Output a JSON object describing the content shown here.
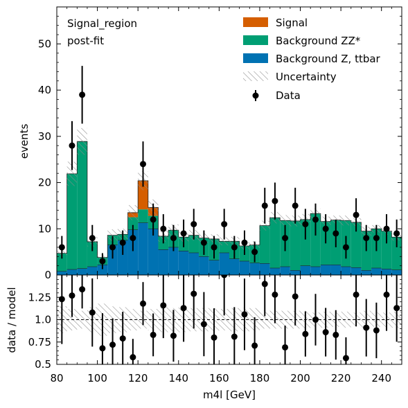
{
  "chart_data": {
    "type": "histogram",
    "annotations": [
      "Signal_region",
      "post-fit"
    ],
    "xlabel": "m4l [GeV]",
    "xlim": [
      80,
      250
    ],
    "x_ticks": [
      "80",
      "100",
      "120",
      "140",
      "160",
      "180",
      "200",
      "220",
      "240"
    ],
    "top_panel": {
      "ylabel": "events",
      "ylim": [
        0,
        58
      ],
      "y_ticks": [
        "0",
        "10",
        "20",
        "30",
        "40",
        "50"
      ]
    },
    "bottom_panel": {
      "ylabel": "data / model",
      "ylim": [
        0.5,
        1.5
      ],
      "y_ticks": [
        "0.5",
        "0.75",
        "1.0",
        "1.25"
      ],
      "reference_line": 1.0
    },
    "bin_edges": [
      80,
      85,
      90,
      95,
      100,
      105,
      110,
      115,
      120,
      125,
      130,
      135,
      140,
      145,
      150,
      155,
      160,
      165,
      170,
      175,
      180,
      185,
      190,
      195,
      200,
      205,
      210,
      215,
      220,
      225,
      230,
      235,
      240,
      245,
      250
    ],
    "series": [
      {
        "name": "Background Z, ttbar",
        "color": "#0072b2",
        "values": [
          0.8,
          1.2,
          1.4,
          1.8,
          2.2,
          6.5,
          7.5,
          9.8,
          11.3,
          10.0,
          5.5,
          6.0,
          5.2,
          4.8,
          4.0,
          3.2,
          4.8,
          3.5,
          3.0,
          2.6,
          2.5,
          1.5,
          1.8,
          1.0,
          2.0,
          1.8,
          2.2,
          2.2,
          1.8,
          1.6,
          1.0,
          1.5,
          1.3,
          1.1
        ]
      },
      {
        "name": "Background ZZ*",
        "color": "#009e73",
        "values": [
          3.9,
          20.7,
          27.5,
          5.4,
          1.6,
          2.1,
          1.3,
          2.7,
          2.9,
          2.8,
          2.9,
          3.7,
          3.0,
          3.8,
          4.0,
          4.6,
          2.5,
          3.8,
          3.3,
          3.9,
          8.2,
          10.9,
          10.0,
          10.7,
          10.0,
          11.5,
          9.4,
          9.7,
          10.0,
          9.8,
          8.5,
          8.5,
          8.2,
          7.1
        ]
      },
      {
        "name": "Signal",
        "color": "#d55e00",
        "values": [
          0,
          0,
          0,
          0,
          0,
          0,
          0,
          1.0,
          6.2,
          1.8,
          0,
          0,
          0,
          0,
          0,
          0,
          0,
          0,
          0,
          0,
          0,
          0,
          0,
          0,
          0,
          0,
          0,
          0,
          0,
          0,
          0,
          0,
          0,
          0
        ]
      }
    ],
    "uncertainty": {
      "name": "Uncertainty",
      "relative": [
        0.15,
        0.12,
        0.1,
        0.14,
        0.18,
        0.15,
        0.14,
        0.12,
        0.1,
        0.12,
        0.14,
        0.13,
        0.14,
        0.13,
        0.13,
        0.13,
        0.12,
        0.13,
        0.13,
        0.13,
        0.1,
        0.1,
        0.1,
        0.1,
        0.1,
        0.08,
        0.09,
        0.08,
        0.09,
        0.08,
        0.1,
        0.08,
        0.08,
        0.09
      ]
    },
    "data": {
      "name": "Data",
      "x": [
        82.5,
        87.5,
        92.5,
        97.5,
        102.5,
        107.5,
        112.5,
        117.5,
        122.5,
        127.5,
        132.5,
        137.5,
        142.5,
        147.5,
        152.5,
        157.5,
        162.5,
        167.5,
        172.5,
        177.5,
        182.5,
        187.5,
        192.5,
        197.5,
        202.5,
        207.5,
        212.5,
        217.5,
        222.5,
        227.5,
        232.5,
        237.5,
        242.5,
        247.5
      ],
      "y": [
        6,
        28,
        39,
        8,
        3,
        6,
        7,
        8,
        24,
        12,
        10,
        8,
        9,
        11,
        7,
        6,
        11,
        6,
        7,
        5,
        15,
        16,
        8,
        15,
        11,
        12,
        10,
        9,
        6,
        13,
        8,
        8,
        10,
        9
      ],
      "ratio": [
        1.23,
        1.27,
        1.34,
        1.08,
        0.68,
        0.72,
        0.79,
        0.58,
        1.18,
        0.83,
        1.16,
        0.82,
        1.13,
        1.29,
        0.95,
        0.8,
        1.5,
        0.81,
        1.06,
        0.71,
        1.4,
        1.28,
        0.69,
        1.26,
        0.84,
        1.0,
        0.86,
        0.83,
        0.57,
        1.28,
        0.91,
        0.88,
        1.28,
        1.13
      ]
    }
  }
}
